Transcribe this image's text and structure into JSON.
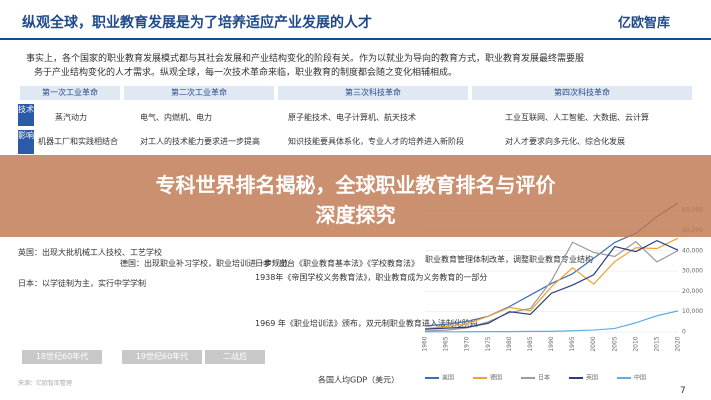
{
  "header": {
    "title": "纵观全球，职业教育发展是为了培养适应产业发展的人才",
    "logo": "亿欧智库"
  },
  "intro": {
    "lines": [
      "事实上，各个国家的职业教育发展模式都与其社会发展和产业结构变化的阶段有关。作为以就业为导向的教育方式，职业教育发展最终需要服",
      "务于产业结构变化的人才需求。纵观全球，每一次技术革命来临，职业教育的制度都会随之变化相辅相成。"
    ]
  },
  "timeline": {
    "eras": [
      "第一次工业革命",
      "第二次工业革命",
      "第三次科技革命",
      "第四次科技革命"
    ]
  },
  "tech": {
    "label": "技术",
    "items": [
      "蒸汽动力",
      "电气、内燃机、电力",
      "原子能技术、电子计算机、航天技术",
      "工业互联网、人工智能、大数据、云计算"
    ]
  },
  "impact": {
    "label": "影响",
    "items": [
      "机器工厂和实践相结合",
      "对工人的技术能力要求进一步提高",
      "知识技能要具体系化，专业人才的培养进入新阶段",
      "对人才要求向多元化、综合化发展"
    ]
  },
  "banner": {
    "lines": [
      "专科世界排名揭秘，全球职业教育排名与评价",
      "深度探究"
    ]
  },
  "countries": {
    "left": [
      "英国：出现大批机械工人技校、工艺学校",
      "日本：以学徒制为主，实行中学学制"
    ],
    "middle": [
      "日本：出台《职业教育基本法》《学校教育法》",
      "德国：出现职业补习学校，职业培训进一步规范",
      "1938年《帝国学校义务教育法》，职业教育成为义务教育的一部分",
      "1969 年《职业培训法》颁布，双元制职业教育进入法制化阶段"
    ],
    "note": "职业教育管理体制改革，调整职业教育专业结构"
  },
  "periods": [
    "18世纪60年代",
    "19世纪60年代",
    "二战后"
  ],
  "chart_data": {
    "type": "line",
    "xlabel": "各国人均GDP（美元）",
    "x": [
      1960,
      1965,
      1970,
      1975,
      1980,
      1985,
      1990,
      1995,
      2000,
      2005,
      2010,
      2015,
      2020
    ],
    "xlim": [
      1960,
      2020
    ],
    "ylim": [
      0,
      65000
    ],
    "yticks": [
      0,
      {
        "value": 10000,
        "label": "10,000"
      },
      {
        "value": 20000,
        "label": "20,000"
      },
      {
        "value": 30000,
        "label": "30,000"
      },
      {
        "value": 40000,
        "label": "40,000"
      },
      {
        "value": 50000,
        "label": "50,000"
      },
      {
        "value": 60000,
        "label": "60,000"
      }
    ],
    "series": [
      {
        "name": "美国",
        "color": "#3b6fb6",
        "values": [
          3000,
          3800,
          5200,
          7800,
          12500,
          18200,
          23900,
          28700,
          36300,
          44100,
          48600,
          56800,
          63500
        ]
      },
      {
        "name": "德国",
        "color": "#f0a030",
        "values": [
          1600,
          2700,
          4100,
          7700,
          12100,
          10500,
          22300,
          31600,
          23600,
          34700,
          41500,
          41100,
          46200
        ]
      },
      {
        "name": "日本",
        "color": "#9a9a9a",
        "values": [
          480,
          920,
          2000,
          5000,
          9500,
          11600,
          25300,
          44200,
          39200,
          37200,
          44500,
          34500,
          40100
        ]
      },
      {
        "name": "英国",
        "color": "#2a3f7a",
        "values": [
          1400,
          1900,
          2350,
          4300,
          10000,
          8700,
          19100,
          23100,
          28200,
          42100,
          39600,
          45000,
          40300
        ]
      },
      {
        "name": "中国",
        "color": "#5fb0e0",
        "values": [
          90,
          100,
          110,
          180,
          190,
          290,
          320,
          610,
          960,
          1750,
          4550,
          8000,
          10400
        ]
      }
    ]
  },
  "footer": {
    "page": "7",
    "source": "来源：亿欧智库整理"
  }
}
